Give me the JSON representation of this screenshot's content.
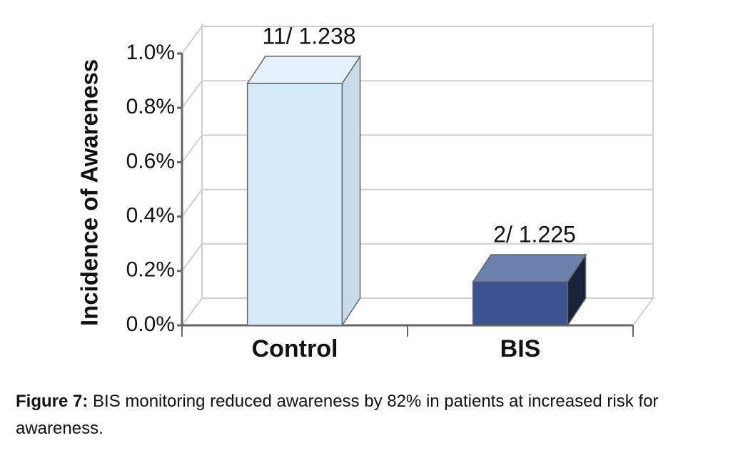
{
  "chart_data": {
    "type": "bar3d",
    "y_label": "Incidence of Awareness",
    "categories": [
      "Control",
      "BIS"
    ],
    "values": [
      0.89,
      0.16
    ],
    "value_labels": [
      "11/ 1.238",
      "2/ 1.225"
    ],
    "colors": [
      "#d6ebf9",
      "#3c5590"
    ],
    "ylim": [
      0,
      1.0
    ],
    "yticks": [
      {
        "value": 0,
        "label": "0.0%"
      },
      {
        "value": 0.2,
        "label": "0.2%"
      },
      {
        "value": 0.4,
        "label": "0.4%"
      },
      {
        "value": 0.6,
        "label": "0.6%"
      },
      {
        "value": 0.8,
        "label": "0.8%"
      },
      {
        "value": 1.0,
        "label": "1.0%"
      }
    ],
    "grid": true
  },
  "caption": {
    "label": "Figure 7:",
    "text": "BIS monitoring reduced awareness by 82% in patients at increased risk for awareness."
  }
}
